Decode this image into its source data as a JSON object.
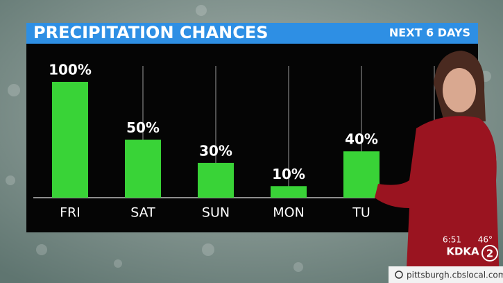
{
  "chart_data": {
    "type": "bar",
    "title": "PRECIPITATION CHANCES",
    "subtitle": "NEXT 6 DAYS",
    "categories": [
      "FRI",
      "SAT",
      "SUN",
      "MON",
      "TU"
    ],
    "values": [
      100,
      50,
      30,
      10,
      40
    ],
    "value_labels": [
      "100%",
      "50%",
      "30%",
      "10%",
      "40%"
    ],
    "color": "#39d337"
  },
  "station": {
    "time": "6:51",
    "temperature": "46°",
    "call_sign": "KDKA",
    "channel": "2"
  },
  "footer": {
    "url": "pittsburgh.cbslocal.com"
  }
}
